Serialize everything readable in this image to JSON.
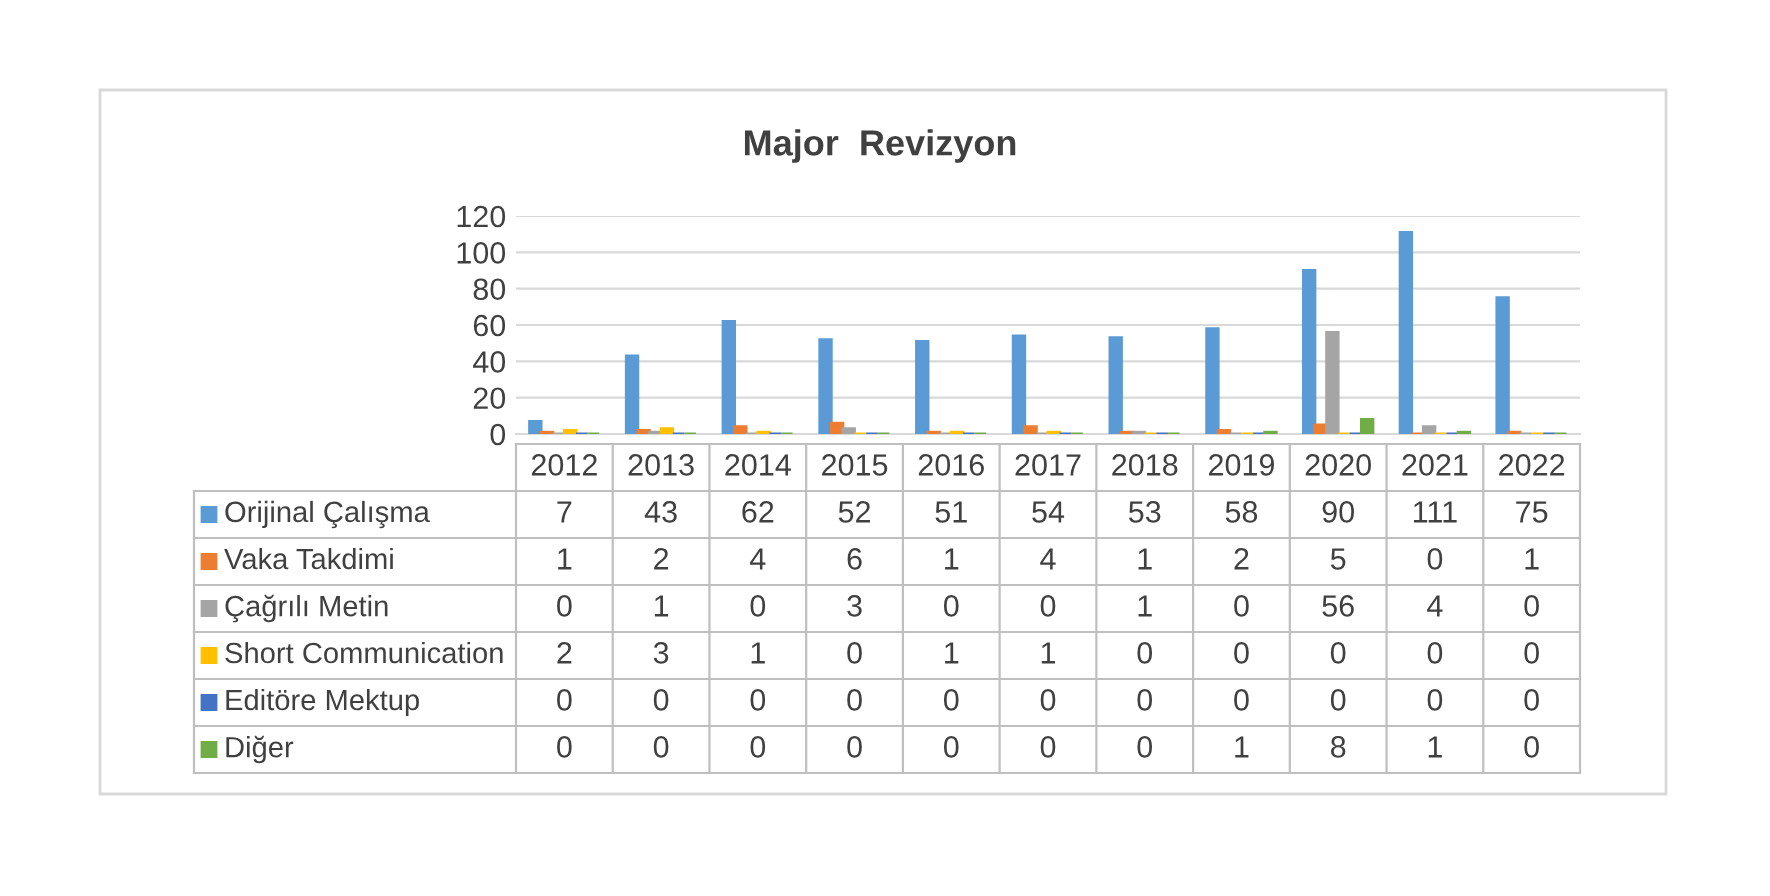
{
  "chart_data": {
    "type": "bar",
    "title": "Major  Revizyon",
    "categories": [
      "2012",
      "2013",
      "2014",
      "2015",
      "2016",
      "2017",
      "2018",
      "2019",
      "2020",
      "2021",
      "2022"
    ],
    "series": [
      {
        "name": "Orijinal Çalışma",
        "color": "#5b9bd5",
        "values": [
          7,
          43,
          62,
          52,
          51,
          54,
          53,
          58,
          90,
          111,
          75
        ]
      },
      {
        "name": "Vaka Takdimi",
        "color": "#ed7d31",
        "values": [
          1,
          2,
          4,
          6,
          1,
          4,
          1,
          2,
          5,
          0,
          1
        ]
      },
      {
        "name": "Çağrılı Metin",
        "color": "#a5a5a5",
        "values": [
          0,
          1,
          0,
          3,
          0,
          0,
          1,
          0,
          56,
          4,
          0
        ]
      },
      {
        "name": "Short Communication",
        "color": "#ffc000",
        "values": [
          2,
          3,
          1,
          0,
          1,
          1,
          0,
          0,
          0,
          0,
          0
        ]
      },
      {
        "name": "Editöre Mektup",
        "color": "#4472c4",
        "values": [
          0,
          0,
          0,
          0,
          0,
          0,
          0,
          0,
          0,
          0,
          0
        ]
      },
      {
        "name": "Diğer",
        "color": "#70ad47",
        "values": [
          0,
          0,
          0,
          0,
          0,
          0,
          0,
          1,
          8,
          1,
          0
        ]
      }
    ],
    "ylim": [
      0,
      120
    ],
    "yticks": [
      0,
      20,
      40,
      60,
      80,
      100,
      120
    ],
    "grid": "y",
    "data_labels": true,
    "legend": "bottom"
  }
}
